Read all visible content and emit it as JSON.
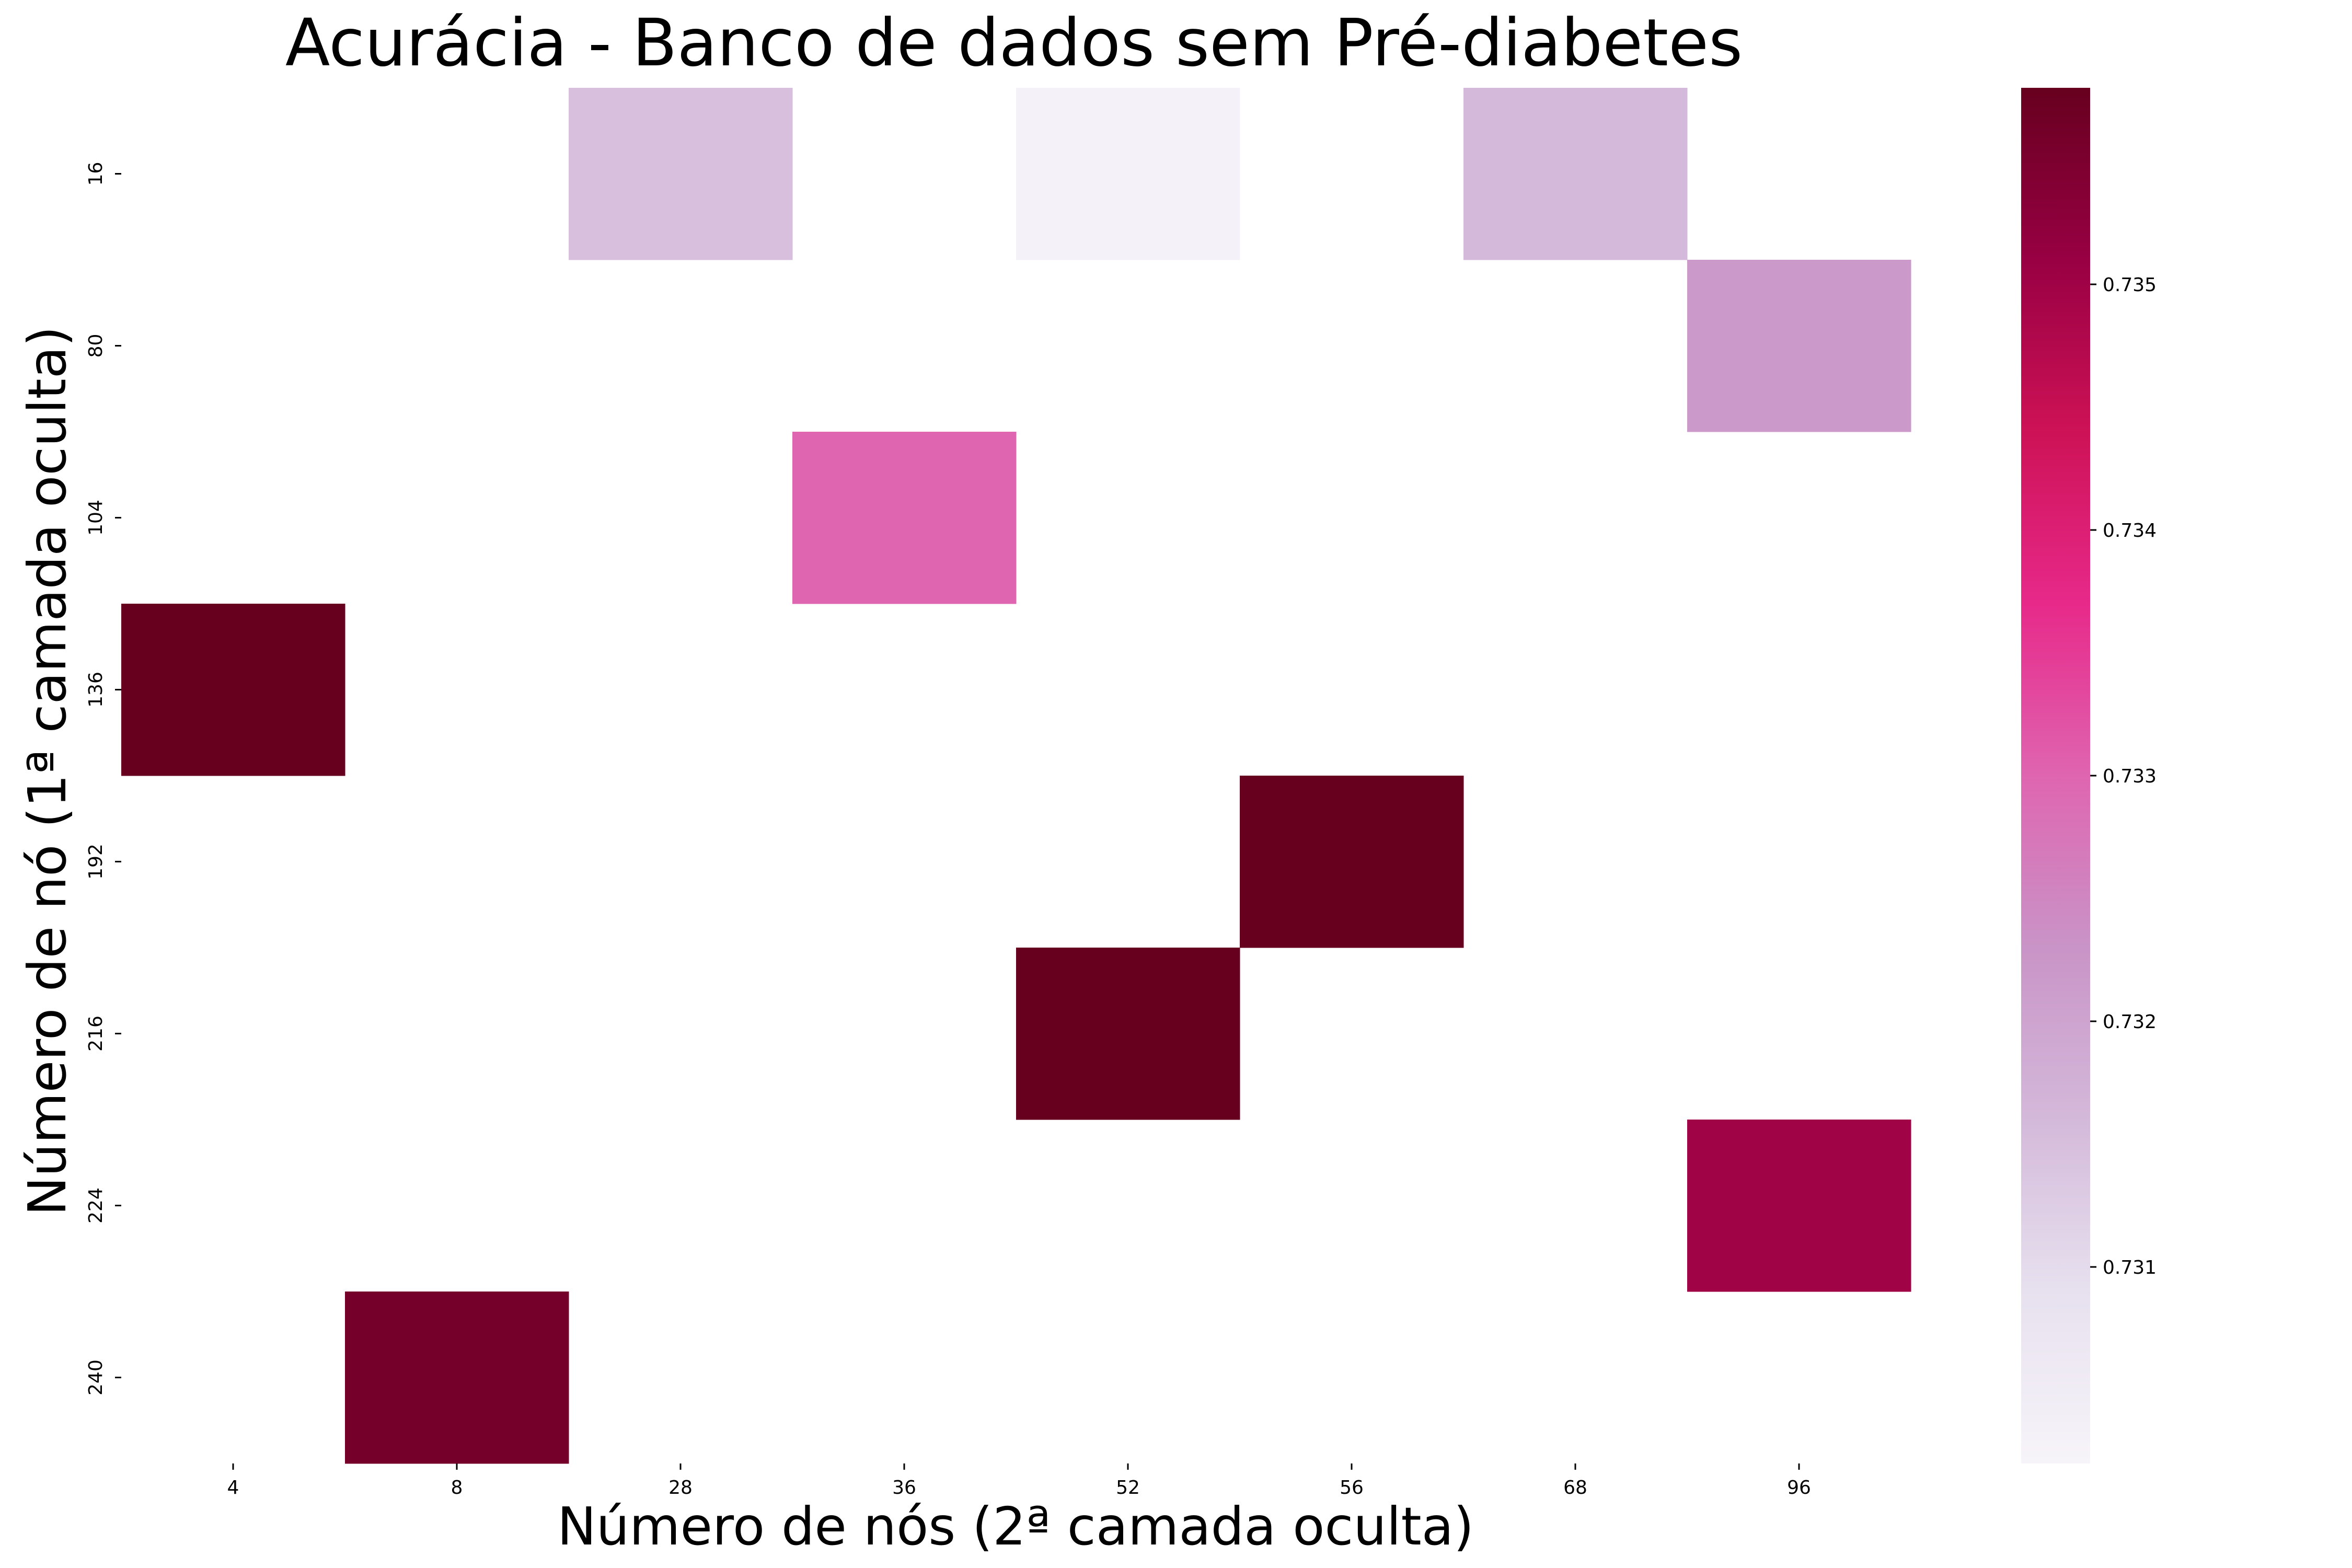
{
  "chart_data": {
    "type": "heatmap",
    "title": "Acurácia - Banco de dados sem Pré-diabetes",
    "xlabel": "Número de nós (2ª camada oculta)",
    "ylabel": "Número de nó (1ª camada oculta)",
    "x_categories": [
      "4",
      "8",
      "28",
      "36",
      "52",
      "56",
      "68",
      "96"
    ],
    "y_categories": [
      "16",
      "80",
      "104",
      "136",
      "192",
      "216",
      "224",
      "240"
    ],
    "cells": [
      {
        "x": "28",
        "y": "16",
        "value": 0.7315
      },
      {
        "x": "52",
        "y": "16",
        "value": 0.7303
      },
      {
        "x": "68",
        "y": "16",
        "value": 0.7316
      },
      {
        "x": "96",
        "y": "80",
        "value": 0.7322
      },
      {
        "x": "36",
        "y": "104",
        "value": 0.733
      },
      {
        "x": "4",
        "y": "136",
        "value": 0.7358
      },
      {
        "x": "56",
        "y": "192",
        "value": 0.7358
      },
      {
        "x": "52",
        "y": "216",
        "value": 0.7358
      },
      {
        "x": "96",
        "y": "224",
        "value": 0.735
      },
      {
        "x": "8",
        "y": "240",
        "value": 0.7356
      }
    ],
    "colorbar": {
      "vmin": 0.7302,
      "vmax": 0.7358,
      "ticks": [
        "0.731",
        "0.732",
        "0.733",
        "0.734",
        "0.735"
      ],
      "colormap": "PuRd",
      "stops": [
        "#f7f4f9",
        "#e7e1ef",
        "#d4b9da",
        "#c994c7",
        "#df65b0",
        "#e7298a",
        "#ce1256",
        "#980043",
        "#67001f"
      ]
    },
    "grid": false,
    "legend": "colorbar-right"
  }
}
